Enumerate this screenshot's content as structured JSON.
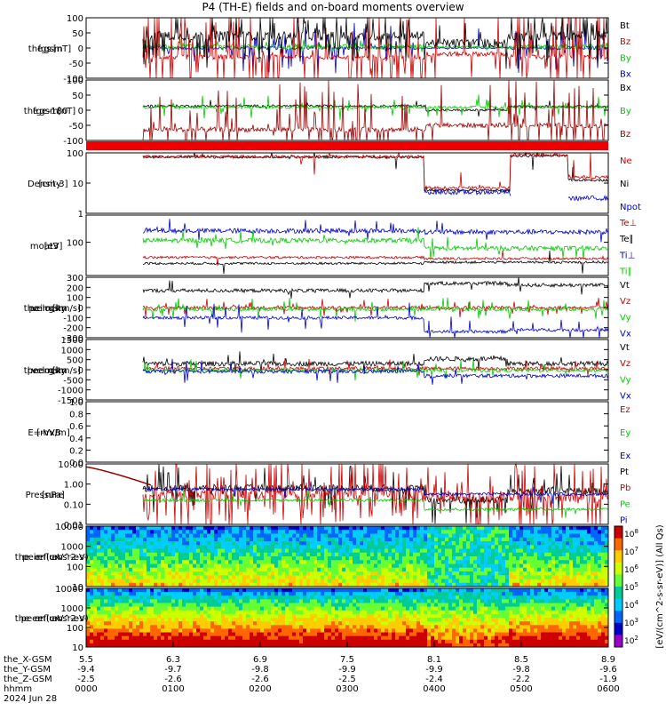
{
  "title": "P4 (TH-E) fields and on-board moments overview",
  "chart_data": [
    {
      "type": "line",
      "name": "fgs_gsm",
      "ylabel": [
        "the",
        "fgs",
        "gsm",
        "[nT]"
      ],
      "yticks": [
        "100",
        "50",
        "0",
        "-50",
        "-100"
      ],
      "ylim": [
        -100,
        100
      ],
      "legend": [
        {
          "label": "Bt",
          "color": "#000000"
        },
        {
          "label": "Bz",
          "color": "#cc0000"
        },
        {
          "label": "By",
          "color": "#00cc00"
        },
        {
          "label": "Bx",
          "color": "#0000cc"
        }
      ],
      "series": [
        {
          "name": "Bt",
          "color": "#000000",
          "typical": 20,
          "range": [
            5,
            100
          ]
        },
        {
          "name": "Bz",
          "color": "#cc0000",
          "typical": -10,
          "range": [
            -100,
            5
          ]
        },
        {
          "name": "By",
          "color": "#00cc00",
          "typical": 5,
          "range": [
            -15,
            15
          ]
        },
        {
          "name": "Bx",
          "color": "#0000cc",
          "typical": 0,
          "range": [
            -10,
            10
          ]
        }
      ]
    },
    {
      "type": "line",
      "name": "fge_gse",
      "ylabel": [
        "the",
        "fge",
        "gsm",
        "-180",
        "[nT]"
      ],
      "yticks": [
        "100",
        "50",
        "0",
        "-50",
        "-100"
      ],
      "ylim": [
        -120,
        100
      ],
      "legend": [
        {
          "label": "Bx",
          "color": "#000000"
        },
        {
          "label": "By",
          "color": "#00cc00"
        },
        {
          "label": "Bz",
          "color": "#990000"
        }
      ]
    },
    {
      "type": "line",
      "name": "density",
      "ylabel": [
        "Density",
        "[cm-3]"
      ],
      "yticks": [
        "100",
        "10",
        "1"
      ],
      "ylim": [
        0.8,
        120
      ],
      "log": true,
      "legend": [
        {
          "label": "Ne",
          "color": "#cc0000"
        },
        {
          "label": "Ni",
          "color": "#000000"
        },
        {
          "label": "Npot",
          "color": "#0000cc"
        }
      ]
    },
    {
      "type": "line",
      "name": "temperature",
      "ylabel": [
        "moat3",
        "[eV]"
      ],
      "yticks": [
        "100"
      ],
      "log": true,
      "legend": [
        {
          "label": "Te⊥",
          "color": "#cc0000"
        },
        {
          "label": "Te∥",
          "color": "#000000"
        },
        {
          "label": "Ti⊥",
          "color": "#0000cc"
        },
        {
          "label": "Ti∥",
          "color": "#00cc00"
        }
      ]
    },
    {
      "type": "line",
      "name": "peim_velocity",
      "ylabel": [
        "the",
        "peim",
        "velocity",
        "gsm",
        "[km/s]"
      ],
      "yticks": [
        "300",
        "200",
        "100",
        "0",
        "-100",
        "-200",
        "-300"
      ],
      "ylim": [
        -300,
        300
      ],
      "legend": [
        {
          "label": "Vt",
          "color": "#000000"
        },
        {
          "label": "Vz",
          "color": "#cc0000"
        },
        {
          "label": "Vy",
          "color": "#00cc00"
        },
        {
          "label": "Vx",
          "color": "#0000cc"
        }
      ]
    },
    {
      "type": "line",
      "name": "peem_velocity",
      "ylabel": [
        "the",
        "peem",
        "velocity",
        "gsm",
        "[km/s]"
      ],
      "yticks": [
        "1500",
        "1000",
        "500",
        "0",
        "-500",
        "-1000",
        "-1500"
      ],
      "ylim": [
        -1500,
        1500
      ],
      "legend": [
        {
          "label": "Vt",
          "color": "#000000"
        },
        {
          "label": "Vz",
          "color": "#cc0000"
        },
        {
          "label": "Vy",
          "color": "#00cc00"
        },
        {
          "label": "Vx",
          "color": "#0000cc"
        }
      ]
    },
    {
      "type": "line",
      "name": "efield",
      "ylabel": [
        "E=-VxB",
        "[mV/m]"
      ],
      "yticks": [
        "1.0",
        "0.8",
        "0.6",
        "0.4",
        "0.2",
        "0.0"
      ],
      "ylim": [
        0,
        1
      ],
      "legend": [
        {
          "label": "Ez",
          "color": "#cc0000"
        },
        {
          "label": "Ey",
          "color": "#00cc00"
        },
        {
          "label": "Ex",
          "color": "#0000cc"
        }
      ]
    },
    {
      "type": "line",
      "name": "pressure",
      "ylabel": [
        "Pressure",
        "[nPa]"
      ],
      "yticks": [
        "10.00",
        "1.00",
        "0.10",
        "0.01"
      ],
      "log": true,
      "legend": [
        {
          "label": "Pt",
          "color": "#000000"
        },
        {
          "label": "Pb",
          "color": "#cc0000"
        },
        {
          "label": "Pe",
          "color": "#00cc00"
        },
        {
          "label": "Pi",
          "color": "#0000cc"
        }
      ]
    },
    {
      "type": "heatmap",
      "name": "peir_en_eflux",
      "ylabel": [
        "the",
        "peir",
        "en",
        "eflux",
        "eV",
        "(cm^2-s-",
        "sr-eV)"
      ],
      "yticks": [
        "10000",
        "1000",
        "100",
        "10"
      ]
    },
    {
      "type": "heatmap",
      "name": "peer_en_eflux",
      "ylabel": [
        "the",
        "peer",
        "en",
        "eflux",
        "eV",
        "(cm^2-s-",
        "sr-eV)"
      ],
      "yticks": [
        "10000",
        "1000",
        "100",
        "10"
      ]
    }
  ],
  "colorbar": {
    "label": "[eV/(cm^2-s-sr-eV)]",
    "label_extra": "[eV/(cm^2-s-sr-eV)] (All Qs)",
    "ticks": [
      "10^8",
      "10^7",
      "10^6",
      "10^5",
      "10^4",
      "10^3",
      "10^2"
    ]
  },
  "xaxis": {
    "row_labels": [
      "the_X-GSM",
      "the_Y-GSM",
      "the_Z-GSM",
      "hhmm",
      "2024 Jun 28"
    ],
    "columns": [
      {
        "x": "5.5",
        "y": "-9.4",
        "z": "-2.5",
        "t": "0000"
      },
      {
        "x": "6.3",
        "y": "-9.7",
        "z": "-2.6",
        "t": "0100"
      },
      {
        "x": "6.9",
        "y": "-9.8",
        "z": "-2.6",
        "t": "0200"
      },
      {
        "x": "7.5",
        "y": "-9.9",
        "z": "-2.5",
        "t": "0300"
      },
      {
        "x": "8.1",
        "y": "-9.9",
        "z": "-2.4",
        "t": "0400"
      },
      {
        "x": "8.5",
        "y": "-9.8",
        "z": "-2.2",
        "t": "0500"
      },
      {
        "x": "8.9",
        "y": "-9.6",
        "z": "-1.9",
        "t": "0600"
      }
    ]
  }
}
